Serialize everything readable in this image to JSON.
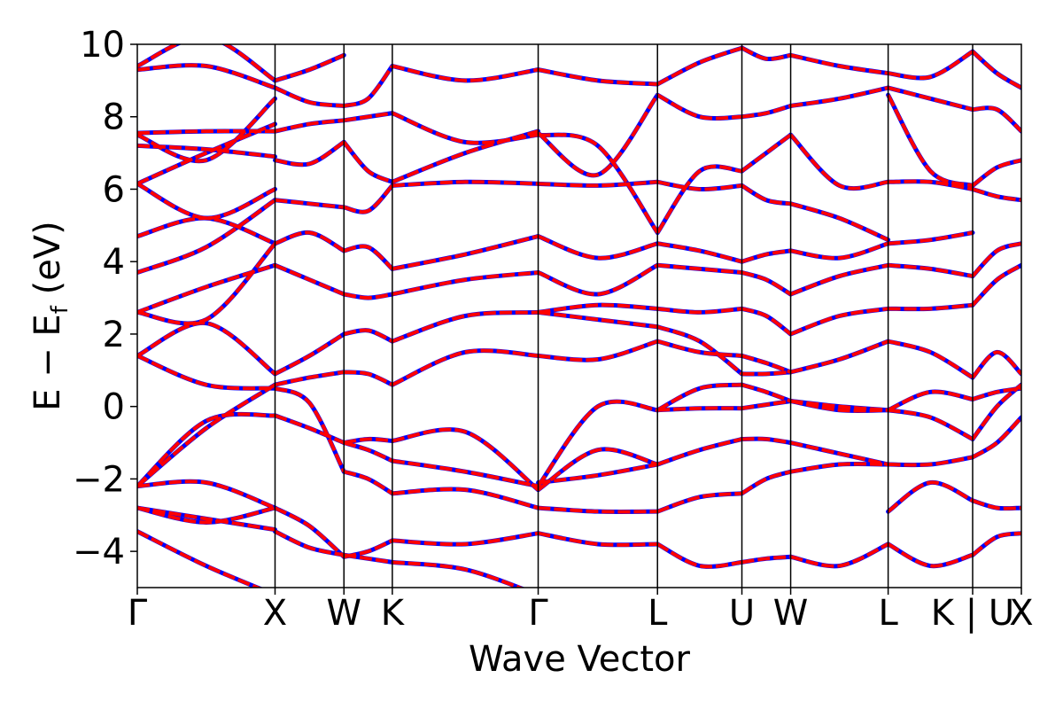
{
  "chart_data": {
    "type": "line",
    "title": "",
    "xlabel": "Wave Vector",
    "ylabel": {
      "prefix": "E − E",
      "subscript": "f",
      "suffix": " (eV)"
    },
    "ylim": [
      -5,
      10
    ],
    "y_ticks": [
      -4,
      -2,
      0,
      2,
      4,
      6,
      8,
      10
    ],
    "y_tick_labels": [
      "−4",
      "−2",
      "0",
      "2",
      "4",
      "6",
      "8",
      "10"
    ],
    "grid": false,
    "high_symmetry_points": [
      {
        "label": "Γ",
        "k": 0.0
      },
      {
        "label": "X",
        "k": 0.2833
      },
      {
        "label": "W",
        "k": 0.425
      },
      {
        "label": "K",
        "k": 0.5245
      },
      {
        "label": "Γ",
        "k": 0.8245
      },
      {
        "label": "L",
        "k": 1.0699
      },
      {
        "label": "U",
        "k": 1.2435
      },
      {
        "label": "W",
        "k": 1.3438
      },
      {
        "label": "L",
        "k": 1.5443
      },
      {
        "label": "K | U",
        "k": 1.7181
      },
      {
        "label": "X",
        "k": 1.8183
      }
    ],
    "series_styles": [
      {
        "color": "#0000ff",
        "dash": "solid",
        "width": 5
      },
      {
        "color": "#ff0000",
        "dash": "dashed",
        "width": 4
      }
    ],
    "segments": [
      {
        "bands": [
          [
            -3.45,
            -4.4,
            -5.2
          ],
          [
            -2.8,
            -3.1,
            -3.4
          ],
          [
            -2.8,
            -3.2,
            -2.8
          ],
          [
            -2.2,
            -2.1,
            -2.8
          ],
          [
            -2.2,
            -0.4,
            -0.25
          ],
          [
            -2.2,
            -0.6,
            0.6
          ],
          [
            1.4,
            2.3,
            0.9
          ],
          [
            1.4,
            0.6,
            0.5
          ],
          [
            2.6,
            3.3,
            3.9
          ],
          [
            2.6,
            2.4,
            4.5
          ],
          [
            3.7,
            4.4,
            5.7
          ],
          [
            4.7,
            5.2,
            4.5
          ],
          [
            6.15,
            5.2,
            6.0
          ],
          [
            6.15,
            7.0,
            7.8
          ],
          [
            7.2,
            7.1,
            6.9
          ],
          [
            7.5,
            6.8,
            8.5
          ],
          [
            7.55,
            7.6,
            7.6
          ],
          [
            9.3,
            9.4,
            8.8
          ],
          [
            9.4,
            10.2,
            9.0
          ]
        ]
      },
      {
        "bands": [
          [
            -3.45,
            -3.9,
            -4.1
          ],
          [
            -2.8,
            -3.3,
            -4.15
          ],
          [
            -0.25,
            -0.6,
            -1.0
          ],
          [
            0.5,
            0.1,
            -1.8
          ],
          [
            0.6,
            0.8,
            0.95
          ],
          [
            0.9,
            1.4,
            2.0
          ],
          [
            3.9,
            3.5,
            3.1
          ],
          [
            4.5,
            4.8,
            4.3
          ],
          [
            5.7,
            5.6,
            5.5
          ],
          [
            6.8,
            6.7,
            7.3
          ],
          [
            7.6,
            7.8,
            7.9
          ],
          [
            8.8,
            8.4,
            8.3
          ],
          [
            9.0,
            9.3,
            9.7
          ]
        ]
      },
      {
        "bands": [
          [
            -4.1,
            -4.2,
            -4.3
          ],
          [
            -4.15,
            -4.0,
            -3.7
          ],
          [
            -1.8,
            -2.0,
            -2.4
          ],
          [
            -1.0,
            -1.2,
            -1.5
          ],
          [
            -1.0,
            -0.9,
            -0.95
          ],
          [
            0.95,
            0.9,
            0.6
          ],
          [
            2.0,
            2.1,
            1.8
          ],
          [
            3.1,
            3.0,
            3.1
          ],
          [
            4.3,
            4.4,
            3.8
          ],
          [
            5.5,
            5.4,
            6.1
          ],
          [
            7.3,
            6.5,
            6.2
          ],
          [
            7.9,
            8.0,
            8.1
          ],
          [
            8.3,
            8.5,
            9.4
          ]
        ]
      },
      {
        "bands": [
          [
            -4.3,
            -4.5,
            -5.2
          ],
          [
            -3.7,
            -3.8,
            -3.5
          ],
          [
            -2.4,
            -2.3,
            -2.8
          ],
          [
            -1.5,
            -1.8,
            -2.2
          ],
          [
            -0.95,
            -0.7,
            -2.3
          ],
          [
            0.6,
            1.5,
            1.4
          ],
          [
            1.8,
            2.5,
            2.6
          ],
          [
            3.1,
            3.5,
            3.7
          ],
          [
            3.8,
            4.2,
            4.7
          ],
          [
            6.1,
            6.2,
            6.15
          ],
          [
            6.2,
            7.0,
            7.6
          ],
          [
            8.1,
            7.3,
            7.5
          ],
          [
            9.4,
            9.0,
            9.3
          ]
        ]
      },
      {
        "bands": [
          [
            -3.5,
            -3.8,
            -3.8
          ],
          [
            -2.8,
            -2.9,
            -2.9
          ],
          [
            -2.3,
            -1.2,
            -1.6
          ],
          [
            -2.2,
            0.0,
            -0.1
          ],
          [
            -2.1,
            -1.9,
            -1.6
          ],
          [
            1.4,
            1.3,
            1.8
          ],
          [
            2.6,
            2.4,
            2.2
          ],
          [
            2.6,
            2.8,
            2.7
          ],
          [
            3.7,
            3.1,
            3.9
          ],
          [
            4.7,
            4.1,
            4.5
          ],
          [
            6.15,
            6.1,
            6.2
          ],
          [
            7.5,
            7.2,
            4.8
          ],
          [
            7.55,
            6.4,
            8.6
          ],
          [
            9.3,
            9.0,
            8.9
          ]
        ]
      },
      {
        "bands": [
          [
            -3.8,
            -4.4,
            -4.3
          ],
          [
            -2.9,
            -2.5,
            -2.4
          ],
          [
            -1.6,
            -1.2,
            -0.9
          ],
          [
            -0.1,
            0.5,
            0.6
          ],
          [
            -0.1,
            -0.05,
            -0.05
          ],
          [
            1.8,
            1.5,
            1.4
          ],
          [
            2.2,
            1.8,
            0.9
          ],
          [
            2.7,
            2.6,
            2.7
          ],
          [
            3.9,
            3.8,
            3.7
          ],
          [
            4.5,
            4.3,
            4.0
          ],
          [
            6.2,
            6.0,
            6.1
          ],
          [
            4.8,
            6.5,
            6.5
          ],
          [
            8.6,
            8.0,
            8.0
          ],
          [
            8.9,
            9.5,
            9.9
          ]
        ]
      },
      {
        "bands": [
          [
            -4.3,
            -4.2,
            -4.15
          ],
          [
            -2.4,
            -2.0,
            -1.8
          ],
          [
            -0.9,
            -0.9,
            -1.0
          ],
          [
            0.6,
            0.4,
            0.15
          ],
          [
            -0.05,
            0.05,
            0.15
          ],
          [
            1.4,
            1.2,
            0.95
          ],
          [
            0.9,
            0.9,
            0.95
          ],
          [
            2.7,
            2.5,
            2.0
          ],
          [
            3.7,
            3.5,
            3.1
          ],
          [
            4.0,
            4.2,
            4.3
          ],
          [
            6.1,
            5.7,
            5.6
          ],
          [
            6.5,
            7.0,
            7.5
          ],
          [
            8.0,
            8.1,
            8.3
          ],
          [
            9.9,
            9.6,
            9.7
          ]
        ]
      },
      {
        "bands": [
          [
            -4.15,
            -4.4,
            -3.8
          ],
          [
            -1.8,
            -1.6,
            -1.6
          ],
          [
            -1.0,
            -1.3,
            -1.6
          ],
          [
            0.15,
            -0.1,
            -0.1
          ],
          [
            0.15,
            0.0,
            -0.1
          ],
          [
            0.95,
            1.3,
            1.8
          ],
          [
            2.0,
            2.5,
            2.7
          ],
          [
            3.1,
            3.6,
            3.9
          ],
          [
            4.3,
            4.1,
            4.5
          ],
          [
            5.6,
            5.2,
            4.6
          ],
          [
            7.5,
            6.1,
            6.2
          ],
          [
            8.3,
            8.5,
            8.8
          ],
          [
            9.7,
            9.4,
            9.2
          ]
        ]
      },
      {
        "bands": [
          [
            -3.8,
            -4.4,
            -4.1
          ],
          [
            -2.9,
            -2.1,
            -2.6
          ],
          [
            -1.6,
            -1.6,
            -1.4
          ],
          [
            -0.1,
            0.4,
            0.2
          ],
          [
            -0.1,
            -0.3,
            -0.9
          ],
          [
            1.8,
            1.5,
            0.8
          ],
          [
            2.7,
            2.7,
            2.8
          ],
          [
            3.9,
            3.8,
            3.6
          ],
          [
            4.5,
            4.6,
            4.8
          ],
          [
            6.2,
            6.2,
            6.0
          ],
          [
            8.6,
            6.5,
            6.1
          ],
          [
            8.8,
            8.5,
            8.2
          ],
          [
            9.2,
            9.1,
            9.8
          ]
        ]
      },
      {
        "bands": [
          [
            -4.1,
            -3.6,
            -3.5
          ],
          [
            -2.6,
            -2.8,
            -2.8
          ],
          [
            -1.4,
            -1.0,
            -0.3
          ],
          [
            0.2,
            0.4,
            0.5
          ],
          [
            -0.9,
            0.0,
            0.6
          ],
          [
            0.8,
            1.5,
            0.9
          ],
          [
            2.8,
            3.5,
            3.9
          ],
          [
            3.6,
            4.3,
            4.5
          ],
          [
            6.0,
            5.8,
            5.7
          ],
          [
            6.1,
            6.6,
            6.8
          ],
          [
            8.2,
            8.2,
            7.6
          ],
          [
            9.8,
            9.2,
            8.8
          ]
        ]
      }
    ]
  }
}
